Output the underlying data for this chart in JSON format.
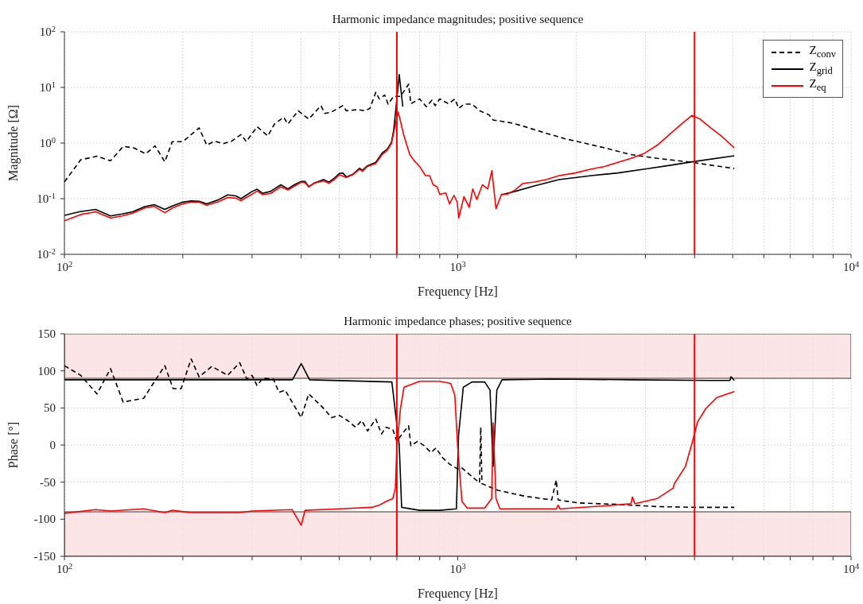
{
  "chart_data": [
    {
      "type": "line",
      "title": "Harmonic impedance magnitudes; positive sequence",
      "xlabel": "Frequency [Hz]",
      "ylabel": "Magnitude [Ω]",
      "log": "xy",
      "grid": true,
      "legend": "top right",
      "xlim": [
        100,
        10000
      ],
      "xticks": [
        {
          "value": 100,
          "label": "10$^{2}$"
        },
        {
          "value": 200,
          "label": null
        },
        {
          "value": 300,
          "label": null
        },
        {
          "value": 400,
          "label": null
        },
        {
          "value": 500,
          "label": null
        },
        {
          "value": 600,
          "label": null
        },
        {
          "value": 700,
          "label": null
        },
        {
          "value": 800,
          "label": null
        },
        {
          "value": 900,
          "label": null
        },
        {
          "value": 1000,
          "label": "10$^{3}$"
        },
        {
          "value": 2000,
          "label": null
        },
        {
          "value": 3000,
          "label": null
        },
        {
          "value": 4000,
          "label": null
        },
        {
          "value": 5000,
          "label": null
        },
        {
          "value": 6000,
          "label": null
        },
        {
          "value": 7000,
          "label": null
        },
        {
          "value": 8000,
          "label": null
        },
        {
          "value": 9000,
          "label": null
        },
        {
          "value": 10000,
          "label": "10$^{4}$"
        }
      ],
      "ylim": [
        0.01,
        100
      ],
      "yticks": [
        {
          "value": 0.01,
          "label": "10$^{-2}$"
        },
        {
          "value": 0.1,
          "label": "10$^{-1}$"
        },
        {
          "value": 1,
          "label": "10$^{0}$"
        },
        {
          "value": 10,
          "label": "10$^{1}$"
        },
        {
          "value": 100,
          "label": "10$^{2}$"
        }
      ],
      "ref_lines": [
        {
          "axis": "x",
          "value": 700,
          "color": "#ff0000"
        },
        {
          "axis": "x",
          "value": 4000,
          "color": "#ff0000"
        }
      ],
      "series": [
        {
          "name": "Z$_{conv}$",
          "color": "#000000",
          "line_style": "dashed",
          "x": [
            100,
            110,
            121,
            131,
            141,
            150,
            161,
            170,
            180,
            188,
            200,
            220,
            230,
            241,
            253,
            266,
            281,
            290,
            309,
            329,
            342,
            361,
            370,
            393,
            418,
            449,
            459,
            477,
            510,
            521,
            558,
            580,
            598,
            619,
            632,
            652,
            665,
            687,
            715,
            750,
            760,
            800,
            832,
            860,
            876,
            900,
            947,
            983,
            1006,
            1037,
            1087,
            1138,
            1202,
            1230,
            1371,
            1482,
            1678,
            1871,
            2022,
            2362,
            2757,
            3219,
            3943,
            4397,
            5048
          ],
          "values": [
            0.2,
            0.5,
            0.58,
            0.48,
            0.87,
            0.82,
            0.64,
            0.89,
            0.46,
            1.06,
            1.06,
            1.87,
            0.92,
            1.08,
            0.97,
            1.08,
            1.42,
            1.06,
            1.97,
            1.34,
            2.2,
            2.9,
            2.2,
            3.8,
            2.7,
            4.7,
            3.4,
            3.6,
            4.7,
            3.8,
            4.0,
            3.8,
            4.2,
            8.2,
            6.2,
            7.3,
            5.0,
            6.9,
            6.9,
            11.4,
            5.1,
            6.2,
            4.5,
            5.9,
            4.7,
            6.2,
            5.1,
            6.2,
            4.2,
            5.0,
            5.0,
            3.8,
            3.2,
            2.6,
            2.3,
            1.97,
            1.5,
            1.2,
            1.06,
            0.82,
            0.62,
            0.53,
            0.45,
            0.4,
            0.35
          ]
        },
        {
          "name": "Z$_{grid}$",
          "color": "#000000",
          "line_style": "solid",
          "x": [
            100,
            109,
            120,
            131,
            140,
            149,
            160,
            169,
            180,
            188,
            200,
            210,
            220,
            230,
            245,
            260,
            273,
            281,
            300,
            309,
            319,
            334,
            355,
            370,
            384,
            400,
            409,
            418,
            432,
            456,
            470,
            485,
            500,
            510,
            521,
            541,
            563,
            572,
            589,
            619,
            642,
            662,
            678,
            687,
            697,
            710,
            725,
            735,
            1251,
            1292,
            1398,
            1557,
            1809,
            2183,
            2554,
            2988,
            3482,
            3943,
            5048
          ],
          "values": [
            0.05,
            0.058,
            0.064,
            0.049,
            0.053,
            0.058,
            0.072,
            0.078,
            0.064,
            0.074,
            0.087,
            0.091,
            0.09,
            0.081,
            0.094,
            0.117,
            0.112,
            0.1,
            0.135,
            0.148,
            0.125,
            0.135,
            0.178,
            0.15,
            0.178,
            0.205,
            0.205,
            0.164,
            0.192,
            0.221,
            0.198,
            0.233,
            0.284,
            0.29,
            0.246,
            0.275,
            0.354,
            0.324,
            0.39,
            0.45,
            0.66,
            0.78,
            1.02,
            1.67,
            4.5,
            17,
            4.5,
            null,
            null,
            0.118,
            0.135,
            0.168,
            0.22,
            0.26,
            0.29,
            0.34,
            0.4,
            0.46,
            0.59
          ]
        },
        {
          "name": "Z$_{eq}$",
          "color": "#ff0000",
          "line_style": "solid",
          "x": [
            100,
            110,
            120,
            131,
            140,
            149,
            160,
            169,
            180,
            188,
            200,
            210,
            220,
            230,
            245,
            260,
            273,
            281,
            300,
            309,
            319,
            334,
            355,
            370,
            384,
            400,
            409,
            418,
            432,
            456,
            470,
            485,
            500,
            521,
            541,
            563,
            572,
            589,
            619,
            642,
            662,
            678,
            687,
            698,
            705,
            713,
            730,
            755,
            775,
            800,
            828,
            848,
            866,
            886,
            900,
            932,
            953,
            978,
            997,
            1006,
            1037,
            1069,
            1092,
            1118,
            1155,
            1192,
            1221,
            1251,
            1292,
            1334,
            1398,
            1464,
            1557,
            1678,
            1809,
            1988,
            2183,
            2362,
            2554,
            2757,
            2988,
            3219,
            3482,
            3703,
            3943,
            4131,
            4397,
            4680,
            5048
          ],
          "values": [
            0.04,
            0.052,
            0.058,
            0.045,
            0.049,
            0.055,
            0.068,
            0.073,
            0.056,
            0.068,
            0.081,
            0.087,
            0.087,
            0.076,
            0.087,
            0.105,
            0.102,
            0.092,
            0.121,
            0.137,
            0.119,
            0.124,
            0.164,
            0.143,
            0.168,
            0.198,
            0.194,
            0.163,
            0.19,
            0.21,
            0.19,
            0.22,
            0.27,
            0.24,
            0.27,
            0.34,
            0.31,
            0.38,
            0.43,
            0.62,
            0.74,
            0.97,
            1.5,
            2.6,
            3.6,
            2.7,
            1.34,
            0.62,
            0.48,
            0.38,
            0.26,
            0.26,
            0.178,
            0.164,
            0.12,
            0.127,
            0.081,
            0.115,
            0.087,
            0.045,
            0.109,
            0.07,
            0.15,
            0.097,
            0.178,
            0.15,
            0.32,
            0.066,
            0.12,
            0.12,
            0.143,
            0.188,
            0.198,
            0.22,
            0.26,
            0.29,
            0.34,
            0.38,
            0.45,
            0.53,
            0.66,
            0.92,
            1.5,
            2.2,
            3.15,
            2.7,
            1.87,
            1.34,
            0.82
          ]
        }
      ]
    },
    {
      "type": "line",
      "title": "Harmonic impedance phases; positive sequence",
      "xlabel": "Frequency [Hz]",
      "ylabel": "Phase [°]",
      "log": "x",
      "grid": true,
      "xlim": [
        100,
        10000
      ],
      "xticks": [
        {
          "value": 100,
          "label": "10$^{2}$"
        },
        {
          "value": 200,
          "label": null
        },
        {
          "value": 300,
          "label": null
        },
        {
          "value": 400,
          "label": null
        },
        {
          "value": 500,
          "label": null
        },
        {
          "value": 600,
          "label": null
        },
        {
          "value": 700,
          "label": null
        },
        {
          "value": 800,
          "label": null
        },
        {
          "value": 900,
          "label": null
        },
        {
          "value": 1000,
          "label": "10$^{3}$"
        },
        {
          "value": 2000,
          "label": null
        },
        {
          "value": 3000,
          "label": null
        },
        {
          "value": 4000,
          "label": null
        },
        {
          "value": 5000,
          "label": null
        },
        {
          "value": 6000,
          "label": null
        },
        {
          "value": 7000,
          "label": null
        },
        {
          "value": 8000,
          "label": null
        },
        {
          "value": 9000,
          "label": null
        },
        {
          "value": 10000,
          "label": "10$^{4}$"
        }
      ],
      "ylim": [
        -150,
        150
      ],
      "yticks": [
        -150,
        -100,
        -50,
        0,
        50,
        100,
        150
      ],
      "bands": [
        {
          "axis": "y",
          "from": 90,
          "to": 150,
          "color": "#fbe0e3"
        },
        {
          "axis": "y",
          "from": -150,
          "to": -90,
          "color": "#fbe0e3"
        }
      ],
      "ref_lines": [
        {
          "axis": "x",
          "value": 700,
          "color": "#ff0000"
        },
        {
          "axis": "x",
          "value": 4000,
          "color": "#ff0000"
        }
      ],
      "series": [
        {
          "color": "#000000",
          "line_style": "dashed",
          "x": [
            100,
            110,
            121,
            131,
            141,
            159,
            180,
            189,
            198,
            210,
            220,
            237,
            260,
            279,
            291,
            300,
            309,
            319,
            340,
            351,
            364,
            400,
            418,
            459,
            477,
            500,
            525,
            550,
            570,
            590,
            619,
            640,
            657,
            684,
            700,
            720,
            750,
            760,
            790,
            822,
            855,
            880,
            915,
            955,
            1006,
            1025,
            1136,
            1144,
            1152,
            1265,
            1482,
            1733,
            1780,
            1800,
            2022,
            2554,
            3219,
            4070,
            5048
          ],
          "values": [
            107,
            94,
            69,
            103,
            58,
            63,
            107,
            76,
            76,
            116,
            92,
            106,
            94,
            111,
            89,
            94,
            80,
            90,
            89,
            71,
            74,
            37,
            69,
            48,
            37,
            40,
            33,
            24,
            33,
            19,
            35,
            15,
            24,
            21,
            5,
            14,
            26,
            -1,
            5,
            -1,
            -10,
            -4,
            -17,
            -26,
            -33,
            -31,
            -51,
            24,
            -52,
            -61,
            -69,
            -74,
            -47,
            -74,
            -78,
            -80,
            -83,
            -84,
            -84
          ]
        },
        {
          "color": "#000000",
          "line_style": "solid",
          "x": [
            100,
            300,
            380,
            400,
            420,
            680,
            710,
            720,
            800,
            900,
            992,
            1005,
            1033,
            1087,
            1171,
            1208,
            1230,
            1257,
            1296,
            1733,
            2757,
            4397,
            4920,
            4950,
            5048
          ],
          "values": [
            88,
            88,
            88,
            110,
            88,
            85,
            0,
            -84,
            -88,
            -88,
            -86,
            14,
            78,
            85,
            85,
            74,
            -29,
            74,
            88,
            89,
            88,
            87,
            87,
            92,
            87
          ]
        },
        {
          "color": "#ff0000",
          "line_style": "solid",
          "x": [
            100,
            120,
            131,
            159,
            180,
            188,
            210,
            278,
            300,
            379,
            400,
            409,
            500,
            604,
            632,
            657,
            684,
            694,
            700,
            715,
            730,
            755,
            800,
            900,
            960,
            983,
            1000,
            1025,
            1057,
            1171,
            1220,
            1230,
            1251,
            1280,
            1482,
            1780,
            1800,
            1820,
            2362,
            2757,
            2780,
            2820,
            3219,
            3530,
            3555,
            3790,
            3943,
            4070,
            4270,
            4555,
            4855,
            5048
          ],
          "values": [
            -92,
            -87,
            -89,
            -86,
            -91,
            -88,
            -91,
            -91,
            -89,
            -87,
            -108,
            -88,
            -86,
            -84,
            -81,
            -76,
            -72,
            -58,
            -4,
            49,
            78,
            81,
            86,
            86,
            83,
            67,
            -4,
            -76,
            -85,
            -85,
            -72,
            30,
            -72,
            -86,
            -86,
            -86,
            -81,
            -86,
            -82,
            -79,
            -70,
            -79,
            -72,
            -58,
            -52,
            -29,
            3,
            31,
            49,
            64,
            69,
            72
          ]
        }
      ]
    }
  ]
}
